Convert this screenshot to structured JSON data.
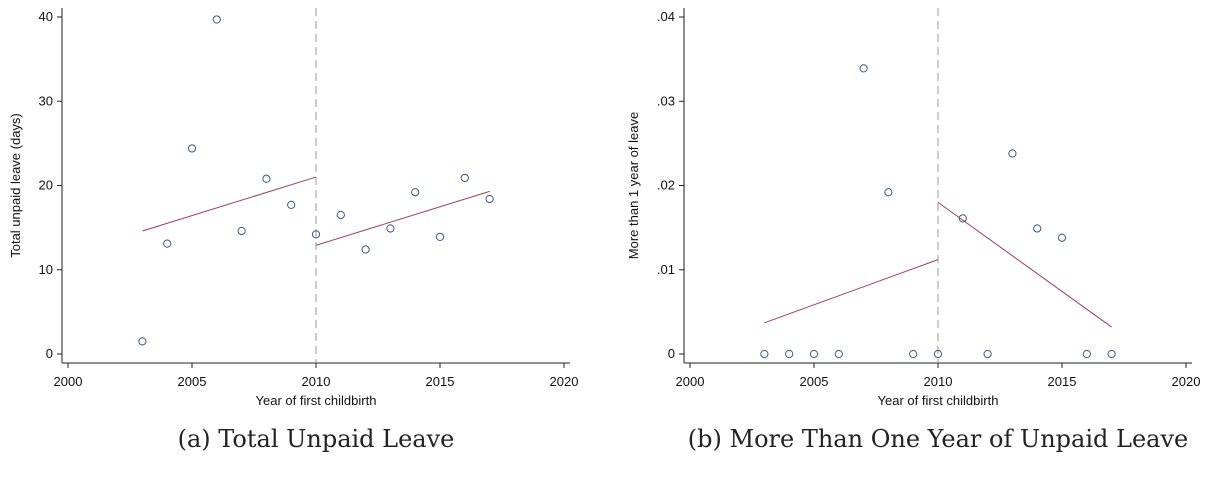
{
  "chart_data": [
    {
      "type": "scatter",
      "caption": "(a) Total Unpaid Leave",
      "xlabel": "Year of first childbirth",
      "ylabel": "Total unpaid leave (days)",
      "xlim": [
        2000,
        2020
      ],
      "ylim": [
        0,
        40
      ],
      "xticks": [
        2000,
        2005,
        2010,
        2015,
        2020
      ],
      "yticks": [
        0,
        10,
        20,
        30,
        40
      ],
      "ytick_labels": [
        "0",
        "10",
        "20",
        "30",
        "40"
      ],
      "cutoff": 2010,
      "points": [
        {
          "x": 2003,
          "y": 1.5
        },
        {
          "x": 2004,
          "y": 13.1
        },
        {
          "x": 2005,
          "y": 24.4
        },
        {
          "x": 2006,
          "y": 39.7
        },
        {
          "x": 2007,
          "y": 14.6
        },
        {
          "x": 2008,
          "y": 20.8
        },
        {
          "x": 2009,
          "y": 17.7
        },
        {
          "x": 2010,
          "y": 14.2
        },
        {
          "x": 2011,
          "y": 16.5
        },
        {
          "x": 2012,
          "y": 12.4
        },
        {
          "x": 2013,
          "y": 14.9
        },
        {
          "x": 2014,
          "y": 19.2
        },
        {
          "x": 2015,
          "y": 13.9
        },
        {
          "x": 2016,
          "y": 20.9
        },
        {
          "x": 2017,
          "y": 18.4
        }
      ],
      "fit_lines": [
        {
          "x": [
            2003,
            2010
          ],
          "y": [
            14.6,
            21.0
          ]
        },
        {
          "x": [
            2010,
            2017
          ],
          "y": [
            12.9,
            19.3
          ]
        }
      ]
    },
    {
      "type": "scatter",
      "caption": "(b) More Than One Year of Unpaid Leave",
      "xlabel": "Year of first childbirth",
      "ylabel": "More than 1 year of leave",
      "xlim": [
        2000,
        2020
      ],
      "ylim": [
        0,
        0.04
      ],
      "xticks": [
        2000,
        2005,
        2010,
        2015,
        2020
      ],
      "yticks": [
        0,
        0.01,
        0.02,
        0.03,
        0.04
      ],
      "ytick_labels": [
        "0",
        ".01",
        ".02",
        ".03",
        ".04"
      ],
      "cutoff": 2010,
      "points": [
        {
          "x": 2003,
          "y": 0
        },
        {
          "x": 2004,
          "y": 0
        },
        {
          "x": 2005,
          "y": 0
        },
        {
          "x": 2006,
          "y": 0
        },
        {
          "x": 2007,
          "y": 0.0339
        },
        {
          "x": 2008,
          "y": 0.0192
        },
        {
          "x": 2009,
          "y": 0
        },
        {
          "x": 2010,
          "y": 0
        },
        {
          "x": 2011,
          "y": 0.0161
        },
        {
          "x": 2012,
          "y": 0
        },
        {
          "x": 2013,
          "y": 0.0238
        },
        {
          "x": 2014,
          "y": 0.0149
        },
        {
          "x": 2015,
          "y": 0.0138
        },
        {
          "x": 2016,
          "y": 0
        },
        {
          "x": 2017,
          "y": 0
        }
      ],
      "fit_lines": [
        {
          "x": [
            2003,
            2010
          ],
          "y": [
            0.0037,
            0.0112
          ]
        },
        {
          "x": [
            2010,
            2017
          ],
          "y": [
            0.018,
            0.0032
          ]
        }
      ]
    }
  ]
}
